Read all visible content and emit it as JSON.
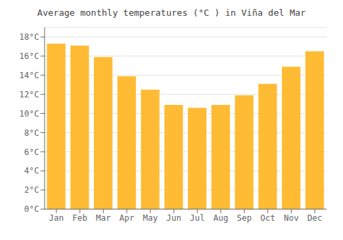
{
  "chart_data": {
    "type": "bar",
    "title": "Average monthly temperatures (°C ) in Viña del Mar",
    "categories": [
      "Jan",
      "Feb",
      "Mar",
      "Apr",
      "May",
      "Jun",
      "Jul",
      "Aug",
      "Sep",
      "Oct",
      "Nov",
      "Dec"
    ],
    "values": [
      17.3,
      17.1,
      15.9,
      13.9,
      12.5,
      10.9,
      10.6,
      10.9,
      11.9,
      13.1,
      14.9,
      16.5
    ],
    "color": "#FFBB33",
    "ylim": [
      0,
      19
    ],
    "yticks": [
      {
        "value": 0,
        "label": "0°C"
      },
      {
        "value": 2,
        "label": "2°C"
      },
      {
        "value": 4,
        "label": "4°C"
      },
      {
        "value": 6,
        "label": "6°C"
      },
      {
        "value": 8,
        "label": "8°C"
      },
      {
        "value": 10,
        "label": "10°C"
      },
      {
        "value": 12,
        "label": "12°C"
      },
      {
        "value": 14,
        "label": "14°C"
      },
      {
        "value": 16,
        "label": "16°C"
      },
      {
        "value": 18,
        "label": "18°C"
      }
    ],
    "grid": true
  }
}
